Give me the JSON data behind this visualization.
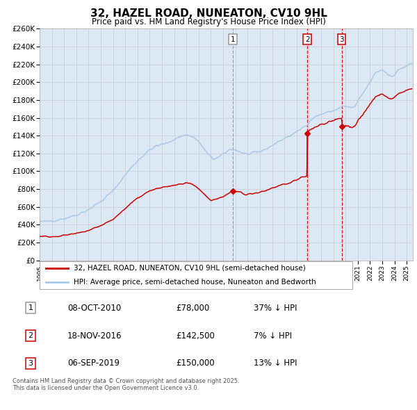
{
  "title": "32, HAZEL ROAD, NUNEATON, CV10 9HL",
  "subtitle": "Price paid vs. HM Land Registry's House Price Index (HPI)",
  "legend_line1": "32, HAZEL ROAD, NUNEATON, CV10 9HL (semi-detached house)",
  "legend_line2": "HPI: Average price, semi-detached house, Nuneaton and Bedworth",
  "footer": "Contains HM Land Registry data © Crown copyright and database right 2025.\nThis data is licensed under the Open Government Licence v3.0.",
  "transactions": [
    {
      "num": 1,
      "date": "08-OCT-2010",
      "price": 78000,
      "hpi_note": "37% ↓ HPI"
    },
    {
      "num": 2,
      "date": "18-NOV-2016",
      "price": 142500,
      "hpi_note": "7% ↓ HPI"
    },
    {
      "num": 3,
      "date": "06-SEP-2019",
      "price": 150000,
      "hpi_note": "13% ↓ HPI"
    }
  ],
  "transaction_dates_dec": [
    2010.77,
    2016.88,
    2019.68
  ],
  "ylim": [
    0,
    260000
  ],
  "ytick_values": [
    0,
    20000,
    40000,
    60000,
    80000,
    100000,
    120000,
    140000,
    160000,
    180000,
    200000,
    220000,
    240000,
    260000
  ],
  "xlim_start": 1995.0,
  "xlim_end": 2025.5,
  "hpi_color": "#a8c8e8",
  "price_color": "#cc0000",
  "vline1_color": "#999999",
  "vline23_color": "#cc0000",
  "bg_color": "#dce9f5",
  "plot_bg": "#ffffff",
  "grid_color": "#c8c8d0"
}
